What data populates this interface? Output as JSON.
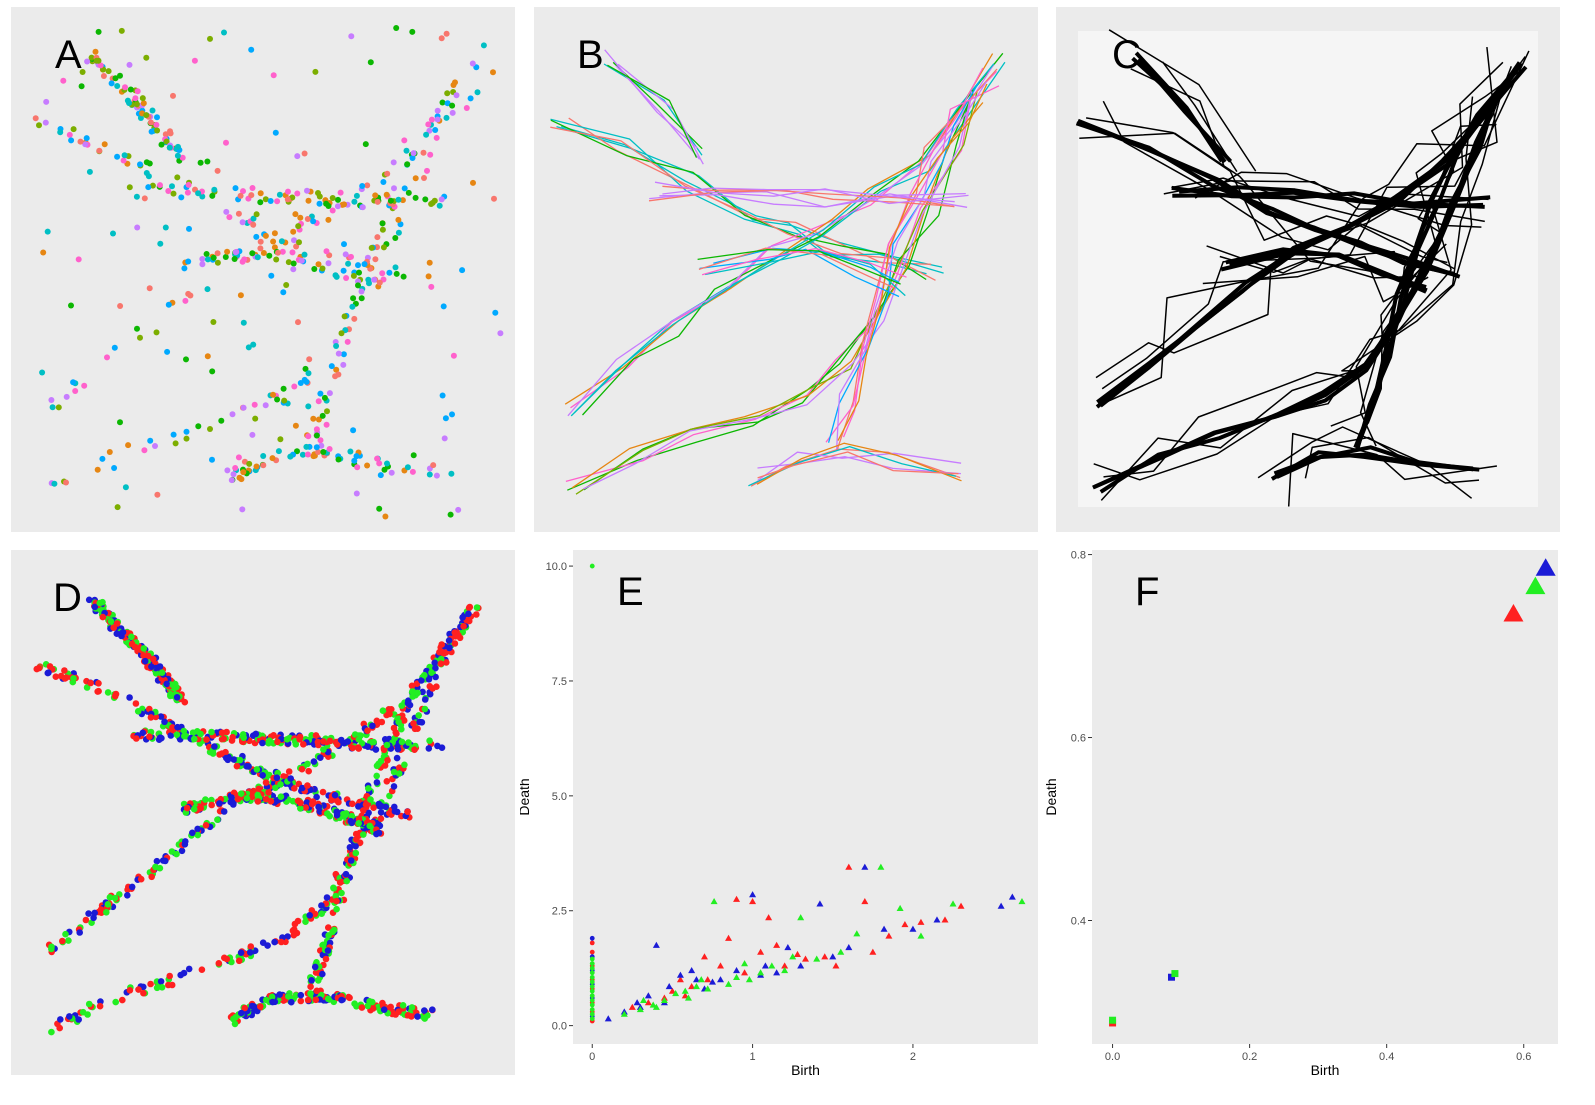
{
  "panels": {
    "A": {
      "letter": "A"
    },
    "B": {
      "letter": "B"
    },
    "C": {
      "letter": "C"
    },
    "D": {
      "letter": "D"
    }
  },
  "chart_data": [
    {
      "panel": "E",
      "letter": "E",
      "type": "scatter",
      "xlabel": "Birth",
      "ylabel": "Death",
      "xlim": [
        -0.12,
        2.78
      ],
      "ylim": [
        -0.4,
        10.35
      ],
      "x_ticks": [
        0,
        1,
        2
      ],
      "x_tick_labels": [
        "0",
        "1",
        "2"
      ],
      "y_ticks": [
        0,
        2.5,
        5,
        7.5,
        10
      ],
      "y_tick_labels": [
        "0.0",
        "2.5",
        "5.0",
        "7.5",
        "10.0"
      ],
      "series": [
        {
          "color": "#ff2020",
          "points_dim0": [
            [
              0,
              0.1
            ],
            [
              0,
              0.3
            ],
            [
              0,
              0.5
            ],
            [
              0,
              0.8
            ],
            [
              0,
              1.0
            ],
            [
              0,
              1.3
            ],
            [
              0,
              1.6
            ],
            [
              0,
              1.8
            ]
          ],
          "points_dim1": [
            [
              0.45,
              0.6
            ],
            [
              0.55,
              1.0
            ],
            [
              0.62,
              0.85
            ],
            [
              0.7,
              1.5
            ],
            [
              0.72,
              1.0
            ],
            [
              0.8,
              1.3
            ],
            [
              0.9,
              2.75
            ],
            [
              0.95,
              1.15
            ],
            [
              1.0,
              2.7
            ],
            [
              1.05,
              1.6
            ],
            [
              1.1,
              2.35
            ],
            [
              1.15,
              1.75
            ],
            [
              1.2,
              1.3
            ],
            [
              1.28,
              1.55
            ],
            [
              1.33,
              1.45
            ],
            [
              1.45,
              1.5
            ],
            [
              1.52,
              1.3
            ],
            [
              1.6,
              3.45
            ],
            [
              1.7,
              2.7
            ],
            [
              1.75,
              1.6
            ],
            [
              1.85,
              1.95
            ],
            [
              1.95,
              2.2
            ],
            [
              2.05,
              2.25
            ],
            [
              2.2,
              2.3
            ],
            [
              2.3,
              2.6
            ],
            [
              0.25,
              0.4
            ],
            [
              0.35,
              0.5
            ],
            [
              0.5,
              0.75
            ],
            [
              0.58,
              0.65
            ],
            [
              0.85,
              1.9
            ]
          ]
        },
        {
          "color": "#1b1bd6",
          "points_dim0": [
            [
              0,
              0.2
            ],
            [
              0,
              0.6
            ],
            [
              0,
              0.9
            ],
            [
              0,
              1.2
            ],
            [
              0,
              1.5
            ],
            [
              0,
              1.9
            ]
          ],
          "points_dim1": [
            [
              0.1,
              0.15
            ],
            [
              0.2,
              0.3
            ],
            [
              0.3,
              0.4
            ],
            [
              0.4,
              1.75
            ],
            [
              0.48,
              0.85
            ],
            [
              0.55,
              1.1
            ],
            [
              0.62,
              1.2
            ],
            [
              0.7,
              0.8
            ],
            [
              0.8,
              1.0
            ],
            [
              0.9,
              1.2
            ],
            [
              1.0,
              2.85
            ],
            [
              1.08,
              1.3
            ],
            [
              1.15,
              1.15
            ],
            [
              1.22,
              1.7
            ],
            [
              1.3,
              1.3
            ],
            [
              1.42,
              2.65
            ],
            [
              1.5,
              1.5
            ],
            [
              1.6,
              1.7
            ],
            [
              1.7,
              3.45
            ],
            [
              1.82,
              2.1
            ],
            [
              2.0,
              2.1
            ],
            [
              2.15,
              2.3
            ],
            [
              2.55,
              2.6
            ],
            [
              2.62,
              2.8
            ],
            [
              0.28,
              0.5
            ],
            [
              0.35,
              0.65
            ],
            [
              0.45,
              0.5
            ],
            [
              0.65,
              1.0
            ],
            [
              0.75,
              0.95
            ],
            [
              1.05,
              1.1
            ]
          ]
        },
        {
          "color": "#22ee22",
          "points_dim0": [
            [
              0,
              10.0
            ],
            [
              0,
              0.15
            ],
            [
              0,
              0.25
            ],
            [
              0,
              0.35
            ],
            [
              0,
              0.45
            ],
            [
              0,
              0.55
            ],
            [
              0,
              0.65
            ],
            [
              0,
              0.75
            ],
            [
              0,
              0.85
            ],
            [
              0,
              0.95
            ],
            [
              0,
              1.05
            ],
            [
              0,
              1.15
            ],
            [
              0,
              1.25
            ],
            [
              0,
              1.35
            ],
            [
              0,
              1.45
            ]
          ],
          "points_dim1": [
            [
              0.2,
              0.25
            ],
            [
              0.3,
              0.35
            ],
            [
              0.38,
              0.45
            ],
            [
              0.45,
              0.55
            ],
            [
              0.52,
              0.7
            ],
            [
              0.58,
              0.75
            ],
            [
              0.65,
              0.85
            ],
            [
              0.72,
              0.8
            ],
            [
              0.76,
              2.7
            ],
            [
              0.85,
              0.9
            ],
            [
              0.9,
              1.05
            ],
            [
              0.98,
              1.0
            ],
            [
              1.05,
              1.15
            ],
            [
              1.12,
              1.3
            ],
            [
              1.2,
              1.2
            ],
            [
              1.3,
              2.35
            ],
            [
              1.4,
              1.45
            ],
            [
              1.55,
              1.6
            ],
            [
              1.65,
              2.0
            ],
            [
              1.8,
              3.45
            ],
            [
              1.92,
              2.55
            ],
            [
              2.05,
              1.95
            ],
            [
              2.25,
              2.65
            ],
            [
              2.68,
              2.7
            ],
            [
              0.6,
              0.6
            ],
            [
              0.4,
              0.4
            ],
            [
              0.32,
              0.55
            ],
            [
              0.95,
              1.35
            ],
            [
              1.25,
              1.5
            ],
            [
              0.68,
              1.0
            ]
          ]
        }
      ]
    },
    {
      "panel": "F",
      "letter": "F",
      "type": "scatter",
      "xlabel": "Birth",
      "ylabel": "Death",
      "xlim": [
        -0.03,
        0.65
      ],
      "ylim": [
        0.265,
        0.805
      ],
      "x_ticks": [
        0,
        0.2,
        0.4,
        0.6
      ],
      "x_tick_labels": [
        "0.0",
        "0.2",
        "0.4",
        "0.6"
      ],
      "y_ticks": [
        0.4,
        0.6,
        0.8
      ],
      "y_tick_labels": [
        "0.4",
        "0.6",
        "0.8"
      ],
      "series": [
        {
          "color": "#ff2020",
          "squares": [
            [
              0.0,
              0.288
            ]
          ],
          "triangle": [
            0.585,
            0.735
          ]
        },
        {
          "color": "#1b1bd6",
          "squares": [
            [
              0.086,
              0.338
            ]
          ],
          "triangle": [
            0.632,
            0.785
          ]
        },
        {
          "color": "#22ee22",
          "squares": [
            [
              0.0,
              0.291
            ],
            [
              0.091,
              0.342
            ]
          ],
          "triangle": [
            0.617,
            0.765
          ]
        }
      ]
    }
  ]
}
